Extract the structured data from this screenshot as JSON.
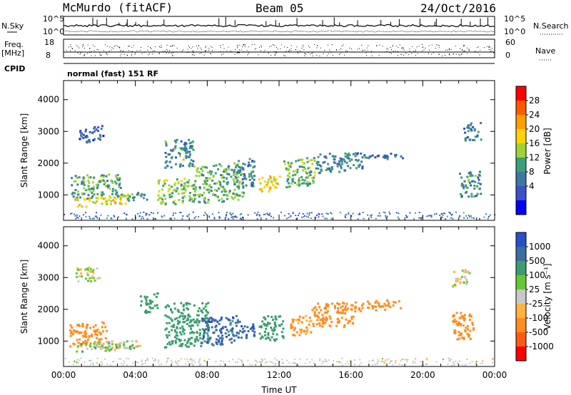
{
  "header": {
    "station": "McMurdo (fitACF)",
    "beam": "Beam 05",
    "date": "24/Oct/2016"
  },
  "noise_panel": {
    "left_label": "N.Sky",
    "right_label": "N.Search",
    "left_ticks": [
      "10^5",
      "10^0"
    ],
    "right_ticks": [
      "10^5",
      "10^0"
    ]
  },
  "freq_panel": {
    "left_label_top": "Freq.",
    "left_label_units": "[MHz]",
    "left_ticks": [
      "18",
      "8"
    ],
    "right_label": "Nave",
    "right_ticks": [
      "60",
      "0"
    ]
  },
  "cpid_panel": {
    "label": "CPID",
    "mode_text": "normal (fast) 151 RF"
  },
  "chart_data": [
    {
      "type": "heatmap",
      "name": "Power panel",
      "ylabel": "Slant Range [km]",
      "yticks": [
        "4000",
        "3000",
        "2000",
        "1000"
      ],
      "ytick_values": [
        4000,
        3000,
        2000,
        1000
      ],
      "ylim": [
        200,
        4600
      ],
      "xlim": [
        0,
        24
      ],
      "colorbar": {
        "label": "Power [dB]",
        "ticks": [
          "28",
          "24",
          "20",
          "16",
          "12",
          "8",
          "4"
        ],
        "colors": [
          "#ff0000",
          "#ff5a00",
          "#ff9e00",
          "#ffd200",
          "#9ed236",
          "#3c9e78",
          "#3c78a0",
          "#3c50c8",
          "#0000ff"
        ]
      },
      "blobs": [
        {
          "x": 0.4,
          "y": 1250,
          "w": 2.8,
          "h": 750,
          "v": 12
        },
        {
          "x": 0.6,
          "y": 780,
          "w": 3.1,
          "h": 300,
          "v": 19
        },
        {
          "x": 3.4,
          "y": 950,
          "w": 1.2,
          "h": 250,
          "v": 12
        },
        {
          "x": 5.2,
          "y": 1100,
          "w": 2.1,
          "h": 800,
          "v": 15
        },
        {
          "x": 5.6,
          "y": 2300,
          "w": 1.6,
          "h": 900,
          "v": 10
        },
        {
          "x": 7.2,
          "y": 1350,
          "w": 2.8,
          "h": 1200,
          "v": 13
        },
        {
          "x": 9.6,
          "y": 1700,
          "w": 1.0,
          "h": 900,
          "v": 9
        },
        {
          "x": 10.8,
          "y": 1350,
          "w": 1.2,
          "h": 500,
          "v": 19
        },
        {
          "x": 12.2,
          "y": 1700,
          "w": 1.8,
          "h": 900,
          "v": 14
        },
        {
          "x": 14.0,
          "y": 2000,
          "w": 2.6,
          "h": 600,
          "v": 9
        },
        {
          "x": 16.6,
          "y": 2200,
          "w": 2.4,
          "h": 200,
          "v": 7
        },
        {
          "x": 0.8,
          "y": 2900,
          "w": 1.4,
          "h": 500,
          "v": 6
        },
        {
          "x": 22.0,
          "y": 1350,
          "w": 1.2,
          "h": 800,
          "v": 10
        },
        {
          "x": 22.2,
          "y": 3000,
          "w": 1.0,
          "h": 550,
          "v": 8
        }
      ]
    },
    {
      "type": "heatmap",
      "name": "Velocity panel",
      "ylabel": "Slant Range [km]",
      "xlabel": "Time UT",
      "xticks": [
        "00:00",
        "04:00",
        "08:00",
        "12:00",
        "16:00",
        "20:00",
        "00:00"
      ],
      "xtick_values": [
        0,
        4,
        8,
        12,
        16,
        20,
        24
      ],
      "yticks": [
        "4000",
        "3000",
        "2000",
        "1000"
      ],
      "ytick_values": [
        4000,
        3000,
        2000,
        1000
      ],
      "ylim": [
        200,
        4600
      ],
      "xlim": [
        0,
        24
      ],
      "colorbar": {
        "label": "Velocity [m s⁻¹]",
        "ticks": [
          "1000",
          "500",
          "100",
          "25",
          "-25",
          "-100",
          "-500",
          "-1000"
        ],
        "colors": [
          "#2850c8",
          "#3c6ea0",
          "#3c9e6e",
          "#64c832",
          "#c8c8c8",
          "#ffb43c",
          "#ff8c1e",
          "#ff5a14",
          "#ff0000"
        ]
      },
      "blobs": [
        {
          "x": 0.3,
          "y": 1200,
          "w": 2.2,
          "h": 700,
          "v": -300
        },
        {
          "x": 0.6,
          "y": 800,
          "w": 3.4,
          "h": 250,
          "v": 60
        },
        {
          "x": 1.8,
          "y": 850,
          "w": 2.4,
          "h": 300,
          "v": 0
        },
        {
          "x": 0.6,
          "y": 3100,
          "w": 1.4,
          "h": 450,
          "v": 0
        },
        {
          "x": 4.2,
          "y": 2200,
          "w": 1.0,
          "h": 600,
          "v": 300
        },
        {
          "x": 5.6,
          "y": 1500,
          "w": 2.4,
          "h": 1400,
          "v": 300
        },
        {
          "x": 7.6,
          "y": 1300,
          "w": 2.2,
          "h": 900,
          "v": 800
        },
        {
          "x": 9.8,
          "y": 1300,
          "w": 0.8,
          "h": 500,
          "v": 900
        },
        {
          "x": 10.8,
          "y": 1400,
          "w": 1.4,
          "h": 800,
          "v": 300
        },
        {
          "x": 12.6,
          "y": 1500,
          "w": 1.2,
          "h": 600,
          "v": -150
        },
        {
          "x": 13.8,
          "y": 1800,
          "w": 2.4,
          "h": 800,
          "v": -300
        },
        {
          "x": 16.2,
          "y": 2100,
          "w": 2.6,
          "h": 300,
          "v": -300
        },
        {
          "x": 21.6,
          "y": 1500,
          "w": 1.2,
          "h": 900,
          "v": -300
        },
        {
          "x": 21.6,
          "y": 3000,
          "w": 1.0,
          "h": 500,
          "v": 0
        }
      ]
    }
  ]
}
